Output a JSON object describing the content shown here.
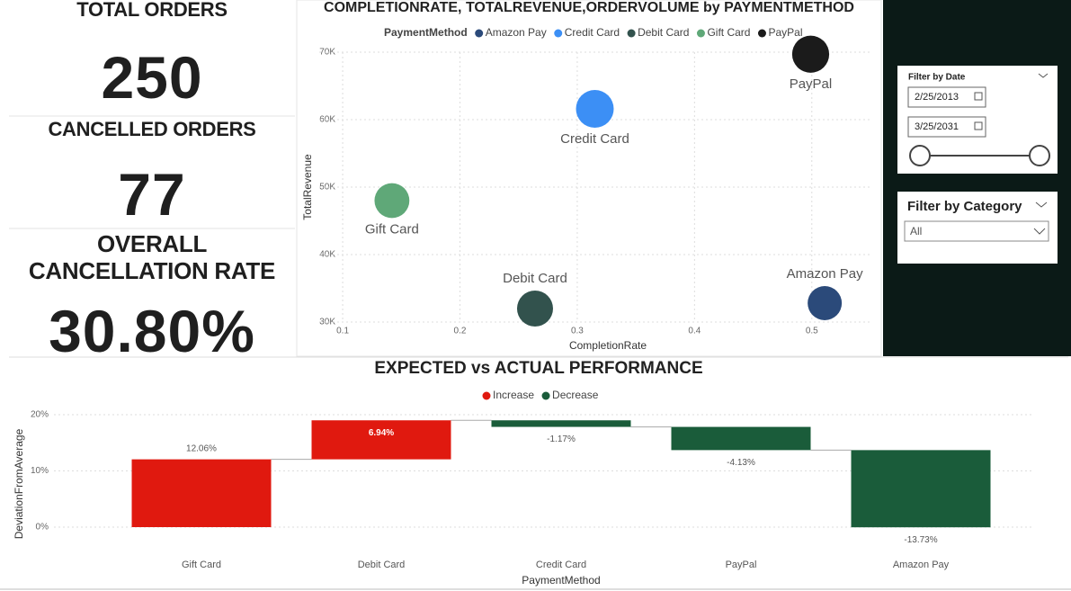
{
  "cards": [
    {
      "title": "TOTAL ORDERS",
      "value": 250
    },
    {
      "title": "CANCELLED ORDERS",
      "value": 77
    },
    {
      "title": "OVERALL CANCELLATION RATE",
      "value": "30.80%"
    }
  ],
  "filters": {
    "date": {
      "title": "Filter by Date",
      "start": "2/25/2013",
      "end": "3/25/2031"
    },
    "category": {
      "title": "Filter by Category",
      "selected": "All"
    }
  },
  "chart_data": [
    {
      "type": "bubble",
      "title": "COMPLETIONRATE, TOTALREVENUE,ORDERVOLUME by PAYMENTMETHOD",
      "legend_title": "PaymentMethod",
      "x_label": "CompletionRate",
      "y_label": "TotalRevenue",
      "xlim": [
        0.08,
        0.55
      ],
      "xticks": [
        0.1,
        0.2,
        0.3,
        0.4,
        0.5
      ],
      "ylim": [
        30000,
        70000
      ],
      "yticks": [
        {
          "value": 30000,
          "label": "30K"
        },
        {
          "value": 40000,
          "label": "40K"
        },
        {
          "value": 50000,
          "label": "50K"
        },
        {
          "value": 60000,
          "label": "60K"
        },
        {
          "value": 70000,
          "label": "70K"
        }
      ],
      "grid": true,
      "series": [
        {
          "name": "Amazon Pay",
          "color": "#2b4a7a",
          "x": [
            0.511
          ],
          "values": [
            32800
          ],
          "sizes": [
            45
          ]
        },
        {
          "name": "Credit Card",
          "color": "#3c8ff5",
          "x": [
            0.315
          ],
          "values": [
            61600
          ],
          "sizes": [
            55
          ]
        },
        {
          "name": "Debit Card",
          "color": "#32524d",
          "x": [
            0.264
          ],
          "values": [
            32000
          ],
          "sizes": [
            50
          ]
        },
        {
          "name": "Gift Card",
          "color": "#5fa878",
          "x": [
            0.142
          ],
          "values": [
            48000
          ],
          "sizes": [
            47
          ]
        },
        {
          "name": "PayPal",
          "color": "#1b1b1b",
          "x": [
            0.499
          ],
          "values": [
            69700
          ],
          "sizes": [
            53
          ]
        }
      ]
    },
    {
      "type": "waterfall",
      "title": "EXPECTED vs ACTUAL PERFORMANCE",
      "x_label": "PaymentMethod",
      "y_label": "DeviationFromAverage",
      "increase": {
        "name": "Increase",
        "color": "#e0190f"
      },
      "decrease": {
        "name": "Decrease",
        "color": "#1a5c3a"
      },
      "categories": [
        "Gift Card",
        "Debit Card",
        "Credit Card",
        "PayPal",
        "Amazon Pay"
      ],
      "values": [
        12.06,
        6.94,
        -1.17,
        -4.13,
        -13.73
      ],
      "value_labels": [
        "12.06%",
        "6.94%",
        "-1.17%",
        "-4.13%",
        "-13.73%"
      ],
      "ylim": [
        0,
        20
      ],
      "yticks": [
        {
          "value": 0,
          "label": "0%"
        },
        {
          "value": 10,
          "label": "10%"
        },
        {
          "value": 20,
          "label": "20%"
        }
      ],
      "grid": true
    }
  ]
}
